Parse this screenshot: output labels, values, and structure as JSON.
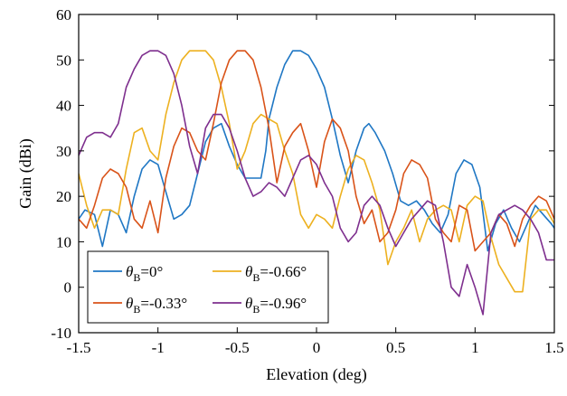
{
  "chart_data": {
    "type": "line",
    "title": "",
    "xlabel": "Elevation (deg)",
    "ylabel": "Gain (dBi)",
    "xlim": [
      -1.5,
      1.5
    ],
    "ylim": [
      -10,
      60
    ],
    "xticks": [
      -1.5,
      -1,
      -0.5,
      0,
      0.5,
      1,
      1.5
    ],
    "xtick_labels": [
      "-1.5",
      "-1",
      "-0.5",
      "0",
      "0.5",
      "1",
      "1.5"
    ],
    "yticks": [
      -10,
      0,
      10,
      20,
      30,
      40,
      50,
      60
    ],
    "ytick_labels": [
      "-10",
      "0",
      "10",
      "20",
      "30",
      "40",
      "50",
      "60"
    ],
    "grid": false,
    "legend_position": "bottom-left",
    "series": [
      {
        "name": "θ_B=0°",
        "symbol": "θ",
        "subscript": "B",
        "value_text": "=0°",
        "color": "#1f77c4",
        "x": [
          -1.5,
          -1.46,
          -1.4,
          -1.35,
          -1.3,
          -1.25,
          -1.2,
          -1.15,
          -1.1,
          -1.05,
          -1.0,
          -0.95,
          -0.9,
          -0.85,
          -0.8,
          -0.75,
          -0.7,
          -0.65,
          -0.6,
          -0.55,
          -0.5,
          -0.45,
          -0.4,
          -0.35,
          -0.32,
          -0.3,
          -0.25,
          -0.2,
          -0.15,
          -0.1,
          -0.05,
          0.0,
          0.05,
          0.1,
          0.15,
          0.2,
          0.25,
          0.3,
          0.33,
          0.37,
          0.43,
          0.48,
          0.53,
          0.58,
          0.63,
          0.68,
          0.73,
          0.78,
          0.83,
          0.88,
          0.93,
          0.98,
          1.03,
          1.08,
          1.13,
          1.18,
          1.23,
          1.28,
          1.33,
          1.38,
          1.43,
          1.48,
          1.5
        ],
        "y": [
          15,
          17,
          16,
          9,
          17,
          16,
          12,
          20,
          26,
          28,
          27,
          21,
          15,
          16,
          18,
          25,
          32,
          35,
          36,
          31,
          27,
          24,
          24,
          24,
          30,
          37,
          44,
          49,
          52,
          52,
          51,
          48,
          44,
          37,
          29,
          23,
          30,
          35,
          36,
          34,
          30,
          25,
          19,
          18,
          19,
          17,
          14,
          12,
          16,
          25,
          28,
          27,
          22,
          8,
          14,
          17,
          13,
          10,
          14,
          18,
          16,
          14,
          13
        ]
      },
      {
        "name": "θ_B=-0.66°",
        "symbol": "θ",
        "subscript": "B",
        "value_text": "=-0.66°",
        "color": "#edb120",
        "x": [
          -1.5,
          -1.45,
          -1.4,
          -1.35,
          -1.3,
          -1.25,
          -1.2,
          -1.15,
          -1.1,
          -1.05,
          -1.0,
          -0.95,
          -0.9,
          -0.85,
          -0.8,
          -0.75,
          -0.7,
          -0.65,
          -0.6,
          -0.55,
          -0.5,
          -0.45,
          -0.4,
          -0.35,
          -0.3,
          -0.25,
          -0.2,
          -0.15,
          -0.1,
          -0.05,
          0.0,
          0.05,
          0.1,
          0.15,
          0.2,
          0.25,
          0.3,
          0.35,
          0.4,
          0.45,
          0.5,
          0.55,
          0.6,
          0.65,
          0.7,
          0.75,
          0.8,
          0.85,
          0.9,
          0.95,
          1.0,
          1.05,
          1.1,
          1.15,
          1.2,
          1.25,
          1.3,
          1.35,
          1.4,
          1.45,
          1.5
        ],
        "y": [
          25,
          18,
          13,
          17,
          17,
          16,
          26,
          34,
          35,
          30,
          28,
          38,
          45,
          50,
          52,
          52,
          52,
          50,
          44,
          36,
          26,
          30,
          36,
          38,
          37,
          36,
          30,
          25,
          16,
          13,
          16,
          15,
          13,
          20,
          26,
          29,
          28,
          23,
          17,
          5,
          10,
          13,
          17,
          10,
          15,
          17,
          18,
          17,
          10,
          18,
          20,
          19,
          11,
          5,
          2,
          -1,
          -1,
          15,
          17,
          17,
          14
        ]
      },
      {
        "name": "θ_B=-0.33°",
        "symbol": "θ",
        "subscript": "B",
        "value_text": "=-0.33°",
        "color": "#d95319",
        "x": [
          -1.5,
          -1.45,
          -1.4,
          -1.35,
          -1.3,
          -1.25,
          -1.2,
          -1.15,
          -1.1,
          -1.05,
          -1.0,
          -0.95,
          -0.9,
          -0.85,
          -0.8,
          -0.75,
          -0.7,
          -0.65,
          -0.6,
          -0.55,
          -0.5,
          -0.45,
          -0.4,
          -0.35,
          -0.3,
          -0.25,
          -0.2,
          -0.15,
          -0.1,
          -0.05,
          0.0,
          0.05,
          0.1,
          0.15,
          0.2,
          0.25,
          0.3,
          0.35,
          0.4,
          0.45,
          0.5,
          0.55,
          0.6,
          0.65,
          0.7,
          0.75,
          0.8,
          0.85,
          0.9,
          0.95,
          1.0,
          1.05,
          1.1,
          1.15,
          1.2,
          1.25,
          1.3,
          1.35,
          1.4,
          1.45,
          1.5
        ],
        "y": [
          15,
          13,
          18,
          24,
          26,
          25,
          22,
          15,
          13,
          19,
          12,
          24,
          31,
          35,
          34,
          30,
          28,
          36,
          45,
          50,
          52,
          52,
          50,
          44,
          35,
          23,
          31,
          34,
          36,
          30,
          22,
          32,
          37,
          35,
          30,
          20,
          14,
          17,
          10,
          12,
          17,
          25,
          28,
          27,
          24,
          15,
          12,
          10,
          18,
          17,
          8,
          10,
          12,
          16,
          14,
          9,
          15,
          18,
          20,
          19,
          15
        ]
      },
      {
        "name": "θ_B=-0.96°",
        "symbol": "θ",
        "subscript": "B",
        "value_text": "=-0.96°",
        "color": "#7e2f8e",
        "x": [
          -1.5,
          -1.45,
          -1.4,
          -1.35,
          -1.3,
          -1.25,
          -1.2,
          -1.15,
          -1.1,
          -1.05,
          -1.0,
          -0.95,
          -0.9,
          -0.85,
          -0.8,
          -0.75,
          -0.7,
          -0.65,
          -0.6,
          -0.55,
          -0.5,
          -0.45,
          -0.4,
          -0.35,
          -0.3,
          -0.25,
          -0.2,
          -0.15,
          -0.1,
          -0.05,
          0.0,
          0.05,
          0.1,
          0.15,
          0.2,
          0.25,
          0.3,
          0.35,
          0.4,
          0.45,
          0.5,
          0.55,
          0.6,
          0.65,
          0.7,
          0.75,
          0.8,
          0.85,
          0.9,
          0.95,
          1.0,
          1.05,
          1.1,
          1.15,
          1.2,
          1.25,
          1.3,
          1.35,
          1.4,
          1.45,
          1.5
        ],
        "y": [
          29,
          33,
          34,
          34,
          33,
          36,
          44,
          48,
          51,
          52,
          52,
          51,
          47,
          40,
          31,
          25,
          35,
          38,
          38,
          35,
          30,
          24,
          20,
          21,
          23,
          22,
          20,
          24,
          28,
          29,
          27,
          23,
          20,
          13,
          10,
          12,
          18,
          20,
          18,
          13,
          9,
          12,
          15,
          17,
          19,
          18,
          10,
          0,
          -2,
          5,
          0,
          -6,
          12,
          16,
          17,
          18,
          17,
          15,
          12,
          6,
          6
        ]
      }
    ]
  }
}
